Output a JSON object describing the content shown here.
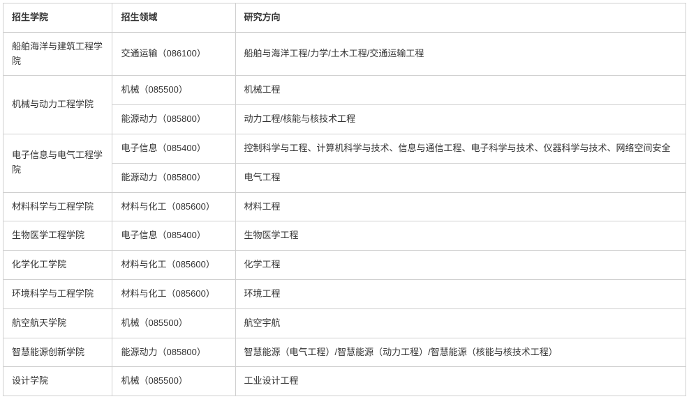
{
  "table": {
    "columns": [
      "招生学院",
      "招生领域",
      "研究方向"
    ],
    "colWidths": [
      "16%",
      "18%",
      "66%"
    ],
    "borderColor": "#d0d0d0",
    "textColor": "#333333",
    "fontSize": 13,
    "groups": [
      {
        "college": "船舶海洋与建筑工程学院",
        "rows": [
          {
            "field": "交通运输（086100）",
            "direction": "船舶与海洋工程/力学/土木工程/交通运输工程"
          }
        ]
      },
      {
        "college": "机械与动力工程学院",
        "rows": [
          {
            "field": "机械（085500）",
            "direction": "机械工程"
          },
          {
            "field": "能源动力（085800）",
            "direction": "动力工程/核能与核技术工程"
          }
        ]
      },
      {
        "college": "电子信息与电气工程学院",
        "rows": [
          {
            "field": "电子信息（085400）",
            "direction": "控制科学与工程、计算机科学与技术、信息与通信工程、电子科学与技术、仪器科学与技术、网络空间安全"
          },
          {
            "field": "能源动力（085800）",
            "direction": "电气工程"
          }
        ]
      },
      {
        "college": "材料科学与工程学院",
        "rows": [
          {
            "field": "材料与化工（085600）",
            "direction": "材料工程"
          }
        ]
      },
      {
        "college": "生物医学工程学院",
        "rows": [
          {
            "field": "电子信息（085400）",
            "direction": "生物医学工程"
          }
        ]
      },
      {
        "college": "化学化工学院",
        "rows": [
          {
            "field": "材料与化工（085600）",
            "direction": "化学工程"
          }
        ]
      },
      {
        "college": "环境科学与工程学院",
        "rows": [
          {
            "field": "材料与化工（085600）",
            "direction": "环境工程"
          }
        ]
      },
      {
        "college": "航空航天学院",
        "rows": [
          {
            "field": "机械（085500）",
            "direction": "航空宇航"
          }
        ]
      },
      {
        "college": "智慧能源创新学院",
        "rows": [
          {
            "field": "能源动力（085800）",
            "direction": "智慧能源（电气工程）/智慧能源（动力工程）/智慧能源（核能与核技术工程）"
          }
        ]
      },
      {
        "college": "设计学院",
        "rows": [
          {
            "field": "机械（085500）",
            "direction": "工业设计工程"
          }
        ]
      }
    ]
  }
}
